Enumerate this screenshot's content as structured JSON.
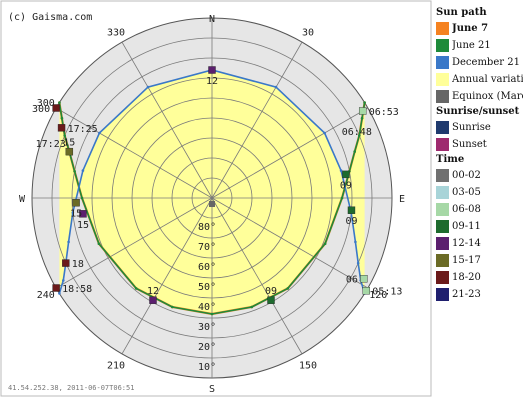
{
  "chart_data": {
    "type": "polar-sun-path",
    "watermark": "(c) Gaisma.com",
    "footer": "41.54.252.38, 2011-06-07T06:51",
    "compass": [
      "N",
      "E",
      "S",
      "W"
    ],
    "azimuth_labels": [
      {
        "az": 330,
        "text": "330"
      },
      {
        "az": 30,
        "text": "30"
      },
      {
        "az": 300,
        "text": "300"
      },
      {
        "az": 240,
        "text": "240"
      },
      {
        "az": 120,
        "text": "120"
      },
      {
        "az": 210,
        "text": "210"
      },
      {
        "az": 150,
        "text": "150"
      }
    ],
    "altitude_labels": [
      "80°",
      "70°",
      "60°",
      "50°",
      "40°",
      "30°",
      "20°",
      "10°"
    ],
    "altitude_rings": [
      0,
      10,
      20,
      30,
      40,
      50,
      60,
      70,
      80
    ],
    "azimuth_grid_step": 30,
    "series": [
      {
        "name": "June 7",
        "color": "#f58220",
        "points": [
          [
            302,
            0
          ],
          [
            298,
            5
          ],
          [
            293,
            10
          ],
          [
            288,
            15
          ],
          [
            281,
            20
          ],
          [
            270,
            25
          ],
          [
            248,
            29
          ],
          [
            220,
            31
          ],
          [
            200,
            32
          ],
          [
            180,
            32
          ],
          [
            160,
            32
          ],
          [
            140,
            31
          ],
          [
            112,
            29
          ],
          [
            90,
            25
          ],
          [
            79,
            20
          ],
          [
            72,
            15
          ],
          [
            67,
            10
          ],
          [
            62,
            5
          ],
          [
            58,
            0
          ]
        ]
      },
      {
        "name": "June 21",
        "color": "#1e8a3a",
        "points": [
          [
            302,
            0
          ],
          [
            298,
            5
          ],
          [
            293,
            10
          ],
          [
            288,
            15
          ],
          [
            281,
            20
          ],
          [
            270,
            25
          ],
          [
            248,
            29
          ],
          [
            220,
            31
          ],
          [
            200,
            32
          ],
          [
            180,
            32
          ],
          [
            160,
            32
          ],
          [
            140,
            31
          ],
          [
            112,
            29
          ],
          [
            90,
            25
          ],
          [
            79,
            20
          ],
          [
            72,
            15
          ],
          [
            67,
            10
          ],
          [
            62,
            5
          ],
          [
            58,
            0
          ]
        ]
      },
      {
        "name": "December 21",
        "color": "#3a78c8",
        "points": [
          [
            238,
            0
          ],
          [
            241,
            5
          ],
          [
            246,
            10
          ],
          [
            253,
            15
          ],
          [
            264,
            20
          ],
          [
            282,
            24
          ],
          [
            300,
            25
          ],
          [
            330,
            26
          ],
          [
            0,
            26
          ],
          [
            30,
            26
          ],
          [
            60,
            25
          ],
          [
            78,
            24
          ],
          [
            96,
            20
          ],
          [
            107,
            15
          ],
          [
            114,
            10
          ],
          [
            119,
            5
          ],
          [
            122,
            0
          ]
        ]
      }
    ],
    "annual_area": {
      "name": "Annual variation",
      "color": "#ffff9a"
    },
    "equinox": {
      "name": "Equinox (March & September)",
      "color": "#666666"
    },
    "hour_markers": [
      {
        "az": 300,
        "alt": 0,
        "color": "#6b1a1a",
        "label": "300",
        "label_pos": "left"
      },
      {
        "az": 295,
        "alt": 7,
        "color": "#6b1a1a",
        "label": "17:25",
        "label_pos": "right"
      },
      {
        "az": 288,
        "alt": 15,
        "color": "#6b6b26",
        "label": "15",
        "label_pos": "above"
      },
      {
        "az": 263,
        "alt": 25,
        "color": "#5b1f6e",
        "label": "15",
        "label_pos": "below"
      },
      {
        "az": 210,
        "alt": 31,
        "color": "#5b1f6e",
        "label": "12",
        "label_pos": "above"
      },
      {
        "az": 150,
        "alt": 31,
        "color": "#1e6b2e",
        "label": "09",
        "label_pos": "above"
      },
      {
        "az": 80,
        "alt": 22,
        "color": "#1e6b2e",
        "label": "09",
        "label_pos": "below"
      },
      {
        "az": 60,
        "alt": 3,
        "color": "#a6d8a6",
        "label": "06:53",
        "label_pos": "right"
      },
      {
        "az": 240,
        "alt": 0,
        "color": "#6b1a1a",
        "label": "18:58",
        "label_pos": "right"
      },
      {
        "az": 246,
        "alt": 10,
        "color": "#6b1a1a",
        "label": "18",
        "label_pos": "right"
      },
      {
        "az": 268,
        "alt": 22,
        "color": "#6b6b26",
        "label": "15",
        "label_pos": "below"
      },
      {
        "az": 0,
        "alt": 26,
        "color": "#5b1f6e",
        "label": "12",
        "label_pos": "below"
      },
      {
        "az": 95,
        "alt": 20,
        "color": "#1e6b2e",
        "label": "09",
        "label_pos": "below"
      },
      {
        "az": 118,
        "alt": 4,
        "color": "#a6d8a6",
        "label": "06",
        "label_pos": "left"
      },
      {
        "az": 121,
        "alt": 0,
        "color": "#a6d8a6",
        "label": "05:13",
        "label_pos": "right"
      }
    ],
    "extra_labels": [
      {
        "text": "17:23",
        "az": 292,
        "alt": 3,
        "pos": "below"
      },
      {
        "text": "06:48",
        "az": 62,
        "alt": 8,
        "pos": "below"
      }
    ],
    "legend": {
      "heading_sun_path": "Sun path",
      "sun_path": [
        {
          "label": "June 7",
          "color": "#f58220",
          "bold": true
        },
        {
          "label": "June 21",
          "color": "#1e8a3a",
          "bold": false
        },
        {
          "label": "December 21",
          "color": "#3a78c8",
          "bold": false
        },
        {
          "label": "Annual variation",
          "color": "#ffff9a",
          "bold": false
        },
        {
          "label": "Equinox (March & September)",
          "color": "#666666",
          "bold": false
        }
      ],
      "heading_sunrise": "Sunrise/sunset",
      "sunrise": [
        {
          "label": "Sunrise",
          "color": "#1f3a6e"
        },
        {
          "label": "Sunset",
          "color": "#9e2a6e"
        }
      ],
      "heading_time": "Time",
      "time": [
        {
          "label": "00-02",
          "color": "#707070"
        },
        {
          "label": "03-05",
          "color": "#a8d4d8"
        },
        {
          "label": "06-08",
          "color": "#a6d8a6"
        },
        {
          "label": "09-11",
          "color": "#1e6b2e"
        },
        {
          "label": "12-14",
          "color": "#5b1f6e"
        },
        {
          "label": "15-17",
          "color": "#6b6b26"
        },
        {
          "label": "18-20",
          "color": "#6b1a1a"
        },
        {
          "label": "21-23",
          "color": "#1f1f6e"
        }
      ]
    }
  }
}
